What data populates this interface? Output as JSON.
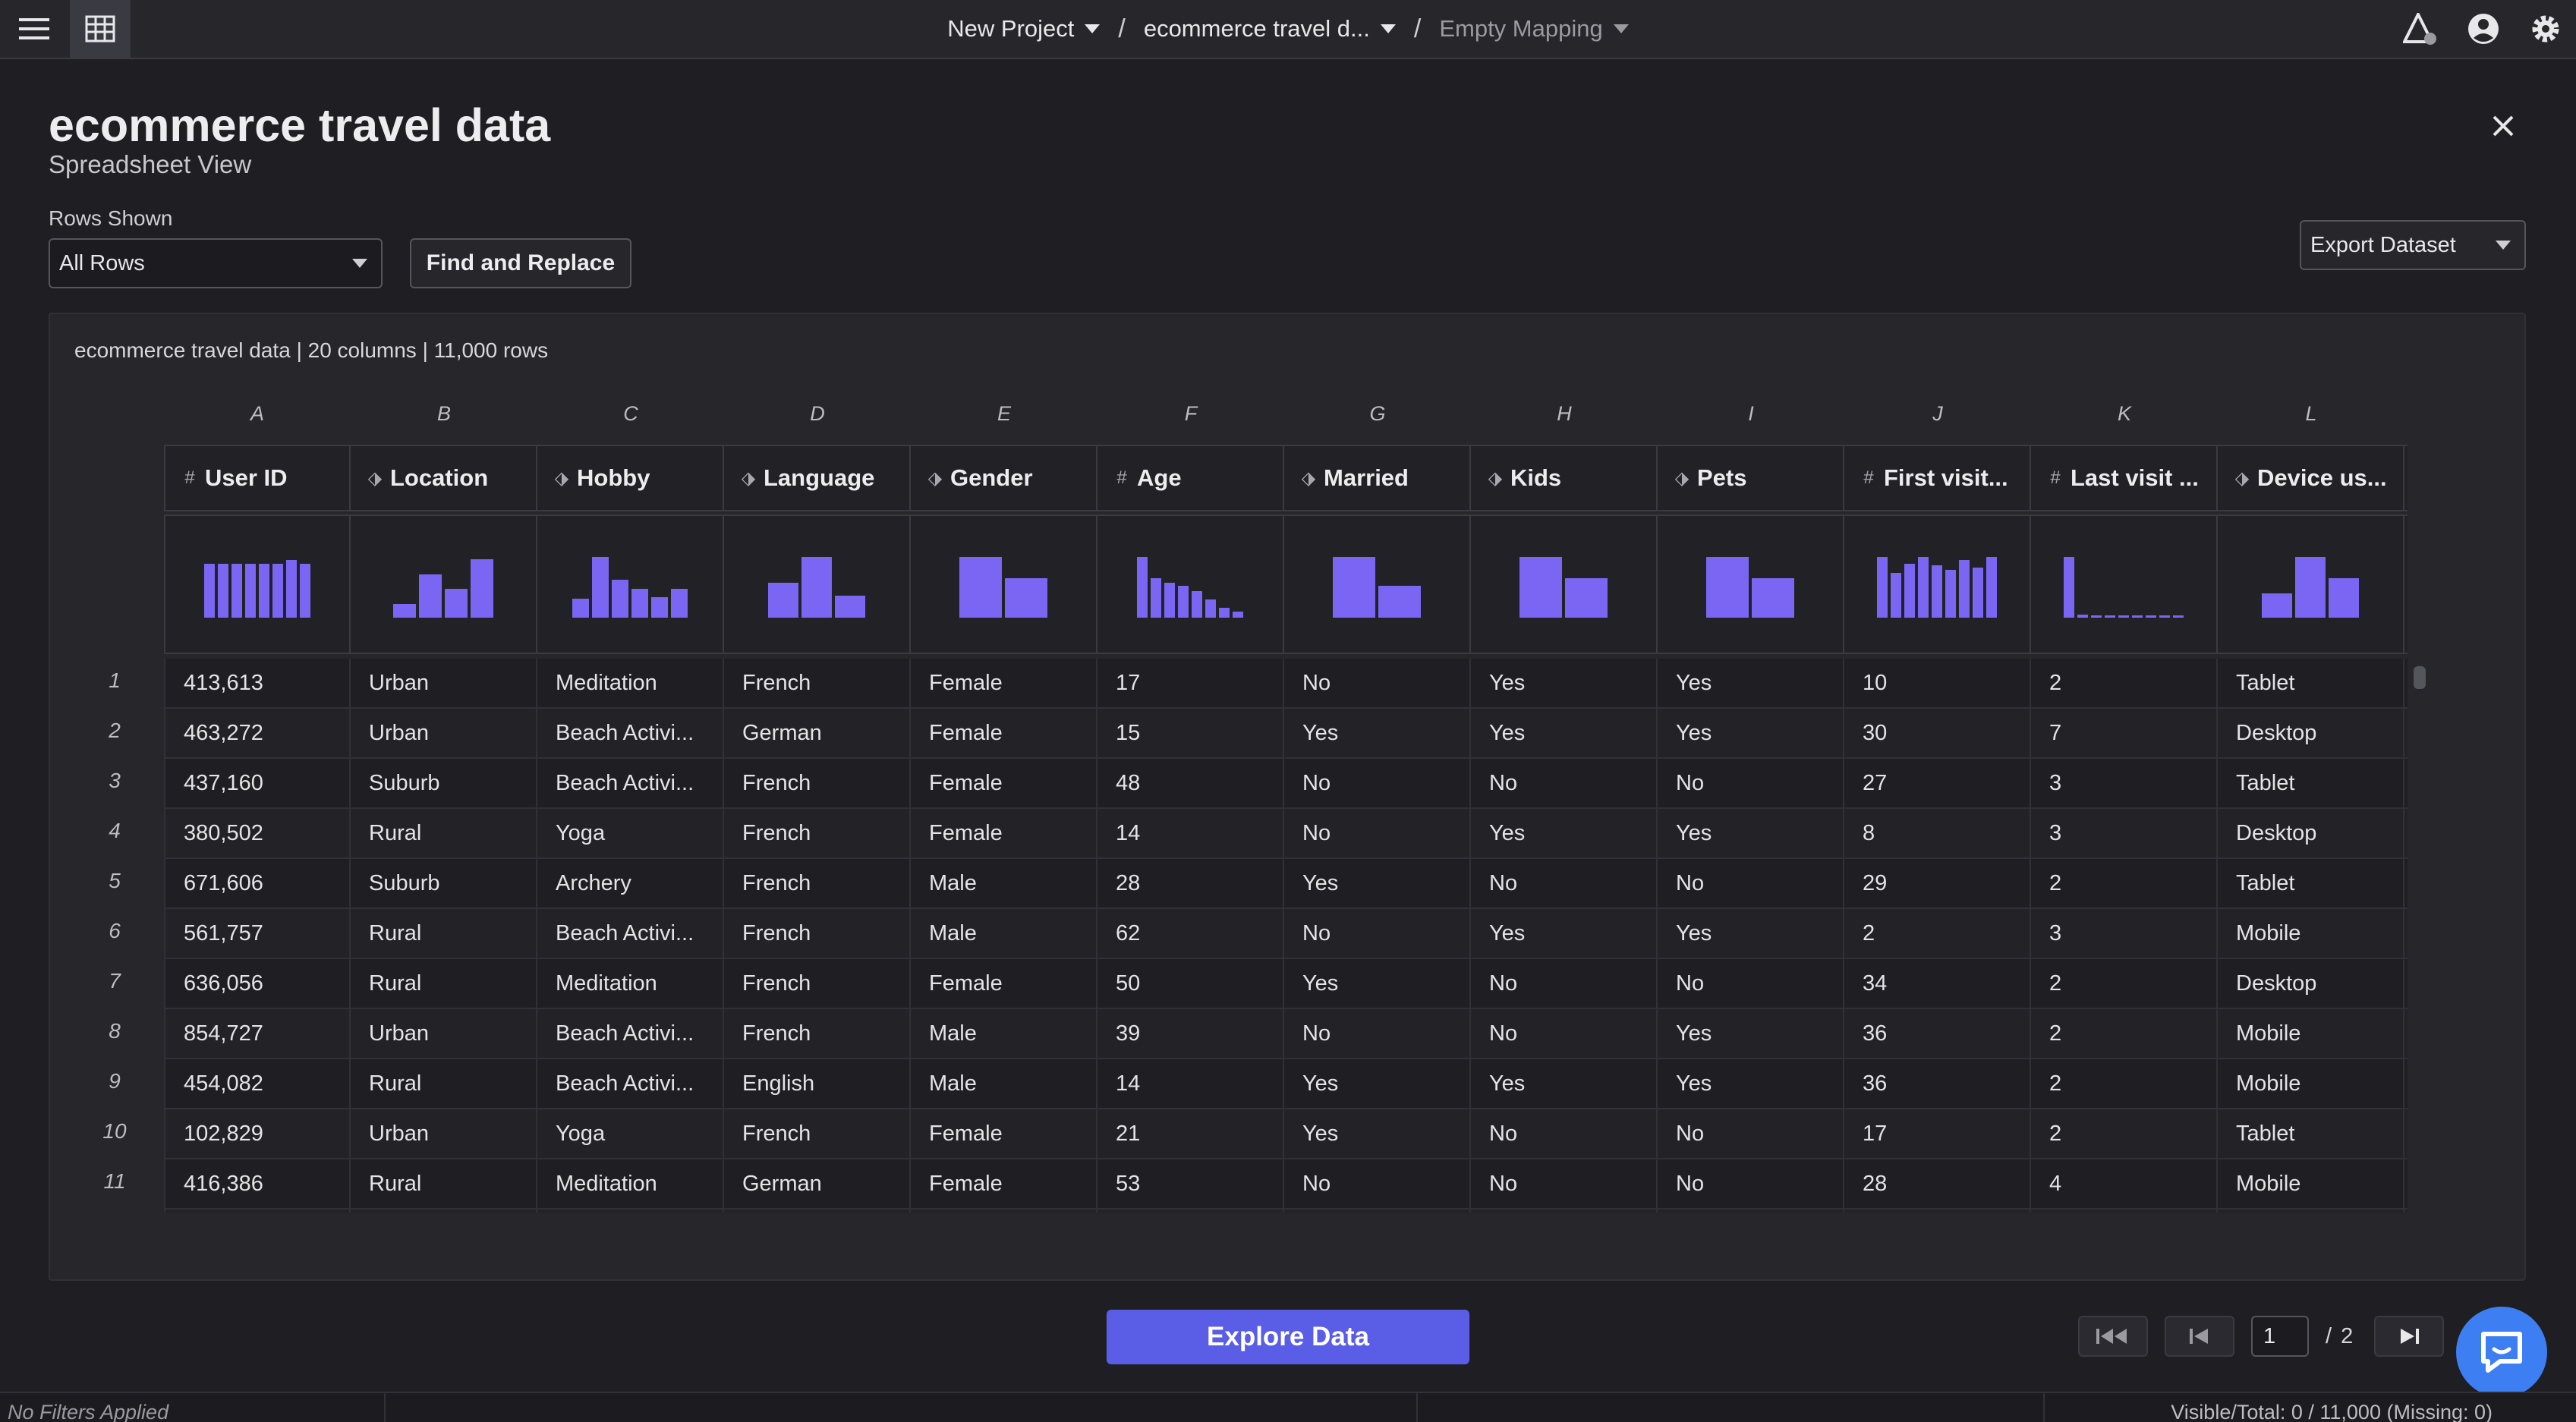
{
  "topbar": {
    "breadcrumbs": [
      {
        "label": "New Project",
        "dim": false
      },
      {
        "label": "ecommerce travel d...",
        "dim": false
      },
      {
        "label": "Empty Mapping",
        "dim": true
      }
    ],
    "separator": "/"
  },
  "header": {
    "title": "ecommerce travel data",
    "subtitle": "Spreadsheet View"
  },
  "controls": {
    "rows_label": "Rows Shown",
    "rows_value": "All Rows",
    "find_replace": "Find and Replace",
    "export": "Export Dataset"
  },
  "table": {
    "meta": "ecommerce travel data | 20 columns | 11,000 rows",
    "columns": [
      {
        "letter": "A",
        "name": "User ID",
        "type": "#",
        "hist": [
          0.85,
          0.85,
          0.85,
          0.85,
          0.85,
          0.85,
          0.9,
          0.85
        ]
      },
      {
        "letter": "B",
        "name": "Location",
        "type": "⬗",
        "hist": [
          0.22,
          0.68,
          0.45,
          0.92
        ]
      },
      {
        "letter": "C",
        "name": "Hobby",
        "type": "⬗",
        "hist": [
          0.3,
          0.95,
          0.6,
          0.45,
          0.32,
          0.45
        ]
      },
      {
        "letter": "D",
        "name": "Language",
        "type": "⬗",
        "hist": [
          0.55,
          0.95,
          0.35
        ]
      },
      {
        "letter": "E",
        "name": "Gender",
        "type": "⬗",
        "hist": [
          0.95,
          0.62
        ]
      },
      {
        "letter": "F",
        "name": "Age",
        "type": "#",
        "hist": [
          0.95,
          0.62,
          0.55,
          0.5,
          0.42,
          0.28,
          0.15,
          0.1
        ]
      },
      {
        "letter": "G",
        "name": "Married",
        "type": "⬗",
        "hist": [
          0.95,
          0.5
        ]
      },
      {
        "letter": "H",
        "name": "Kids",
        "type": "⬗",
        "hist": [
          0.95,
          0.62
        ]
      },
      {
        "letter": "I",
        "name": "Pets",
        "type": "⬗",
        "hist": [
          0.95,
          0.62
        ]
      },
      {
        "letter": "J",
        "name": "First visit...",
        "type": "#",
        "hist": [
          0.95,
          0.7,
          0.85,
          0.95,
          0.82,
          0.75,
          0.9,
          0.78,
          0.95
        ]
      },
      {
        "letter": "K",
        "name": "Last visit ...",
        "type": "#",
        "hist": [
          0.95,
          0.05,
          0.03,
          0.03,
          0.03,
          0.03,
          0.03,
          0.03,
          0.03
        ]
      },
      {
        "letter": "L",
        "name": "Device us...",
        "type": "⬗",
        "hist": [
          0.38,
          0.95,
          0.62
        ]
      }
    ],
    "rows": [
      [
        "413,613",
        "Urban",
        "Meditation",
        "French",
        "Female",
        "17",
        "No",
        "Yes",
        "Yes",
        "10",
        "2",
        "Tablet"
      ],
      [
        "463,272",
        "Urban",
        "Beach Activi...",
        "German",
        "Female",
        "15",
        "Yes",
        "Yes",
        "Yes",
        "30",
        "7",
        "Desktop"
      ],
      [
        "437,160",
        "Suburb",
        "Beach Activi...",
        "French",
        "Female",
        "48",
        "No",
        "No",
        "No",
        "27",
        "3",
        "Tablet"
      ],
      [
        "380,502",
        "Rural",
        "Yoga",
        "French",
        "Female",
        "14",
        "No",
        "Yes",
        "Yes",
        "8",
        "3",
        "Desktop"
      ],
      [
        "671,606",
        "Suburb",
        "Archery",
        "French",
        "Male",
        "28",
        "Yes",
        "No",
        "No",
        "29",
        "2",
        "Tablet"
      ],
      [
        "561,757",
        "Rural",
        "Beach Activi...",
        "French",
        "Male",
        "62",
        "No",
        "Yes",
        "Yes",
        "2",
        "3",
        "Mobile"
      ],
      [
        "636,056",
        "Rural",
        "Meditation",
        "French",
        "Female",
        "50",
        "Yes",
        "No",
        "No",
        "34",
        "2",
        "Desktop"
      ],
      [
        "854,727",
        "Urban",
        "Beach Activi...",
        "French",
        "Male",
        "39",
        "No",
        "No",
        "Yes",
        "36",
        "2",
        "Mobile"
      ],
      [
        "454,082",
        "Rural",
        "Beach Activi...",
        "English",
        "Male",
        "14",
        "Yes",
        "Yes",
        "Yes",
        "36",
        "2",
        "Mobile"
      ],
      [
        "102,829",
        "Urban",
        "Yoga",
        "French",
        "Female",
        "21",
        "Yes",
        "No",
        "No",
        "17",
        "2",
        "Tablet"
      ],
      [
        "416,386",
        "Rural",
        "Meditation",
        "German",
        "Female",
        "53",
        "No",
        "No",
        "No",
        "28",
        "4",
        "Mobile"
      ]
    ],
    "row_numbers": [
      "1",
      "2",
      "3",
      "4",
      "5",
      "6",
      "7",
      "8",
      "9",
      "10",
      "11"
    ]
  },
  "footer": {
    "explore": "Explore Data",
    "page_current": "1",
    "page_sep": "/",
    "page_total": "2",
    "status_left": "No Filters Applied",
    "status_right": "Visible/Total: 0 / 11,000 (Missing: 0)"
  },
  "colors": {
    "accent": "#5a5ee6",
    "histogram": "#7a66f2",
    "chat": "#3d7ff2"
  }
}
